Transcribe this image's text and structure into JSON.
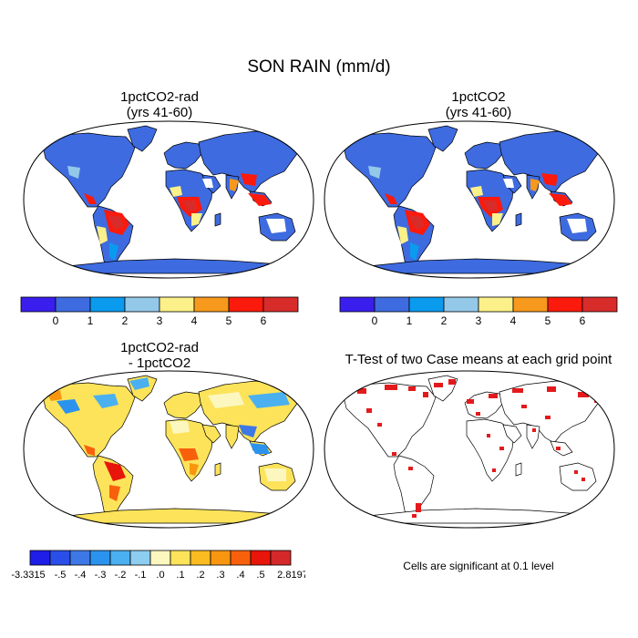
{
  "figure": {
    "title": "SON RAIN (mm/d)"
  },
  "panels": [
    {
      "id": "a",
      "title_line1": "1pctCO2-rad",
      "title_line2": "(yrs 41-60)"
    },
    {
      "id": "b",
      "title_line1": "1pctCO2",
      "title_line2": "(yrs 41-60)"
    },
    {
      "id": "c",
      "title_line1": "1pctCO2-rad",
      "title_line2": "- 1pctCO2"
    },
    {
      "id": "d",
      "title_line1": "T-Test of two Case means at each grid point",
      "title_line2": ""
    }
  ],
  "colorbar_top": {
    "colors": [
      "#3a1eed",
      "#3e6be0",
      "#0a9bef",
      "#94c8e8",
      "#fbf089",
      "#f7991c",
      "#fb1a0c",
      "#d82c2a"
    ],
    "labels": [
      "0",
      "1",
      "2",
      "3",
      "4",
      "5",
      "6"
    ]
  },
  "colorbar_bottom": {
    "colors": [
      "#1e1ee6",
      "#2a4ee8",
      "#3d78e6",
      "#2b93ee",
      "#4ab0f0",
      "#8ccdf0",
      "#fbf7bf",
      "#fde35a",
      "#fbbb22",
      "#f89610",
      "#f8600c",
      "#e8150a",
      "#d3292a"
    ],
    "labels": [
      "-3.3315",
      "-.5",
      "-.4",
      "-.3",
      "-.2",
      "-.1",
      ".0",
      ".1",
      ".2",
      ".3",
      ".4",
      ".5",
      "2.8197"
    ]
  },
  "significance_note": "Cells are significant at 0.1 level",
  "colors": {
    "ocean": "#ffffff",
    "land_outline": "#000000",
    "significant": "#e31a1c",
    "rain_low": "#3e6be0",
    "rain_high": "#d82c2a"
  }
}
